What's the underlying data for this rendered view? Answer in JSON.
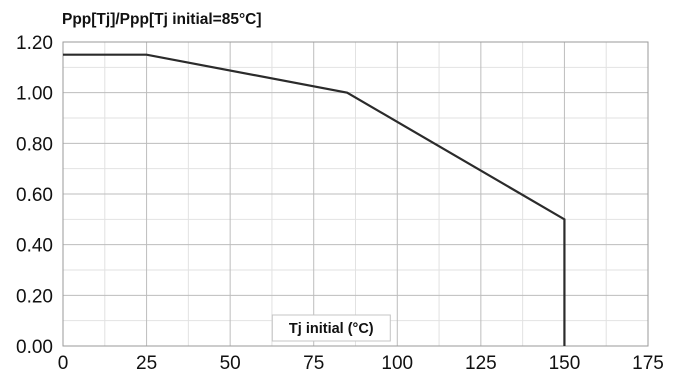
{
  "chart_data": {
    "type": "line",
    "title": "Ppp[Tj]/Ppp[Tj initial=85°C]",
    "xlabel": "Tj initial (°C)",
    "ylabel": "",
    "xlim": [
      0,
      175
    ],
    "ylim": [
      0,
      1.2
    ],
    "x_ticks": [
      0,
      25,
      50,
      75,
      100,
      125,
      150,
      175
    ],
    "x_tick_labels": [
      "0",
      "25",
      "50",
      "75",
      "100",
      "125",
      "150",
      "175"
    ],
    "y_ticks": [
      0,
      0.2,
      0.4,
      0.6,
      0.8,
      1.0,
      1.2
    ],
    "y_tick_labels": [
      "0.00",
      "0.20",
      "0.40",
      "0.60",
      "0.80",
      "1.00",
      "1.20"
    ],
    "grid": true,
    "series": [
      {
        "points": [
          {
            "x": 0,
            "y": 1.15
          },
          {
            "x": 25,
            "y": 1.15
          },
          {
            "x": 85,
            "y": 1.0
          },
          {
            "x": 150,
            "y": 0.5
          },
          {
            "x": 150,
            "y": 0.0
          }
        ],
        "color": "#2b2b2b"
      }
    ]
  }
}
